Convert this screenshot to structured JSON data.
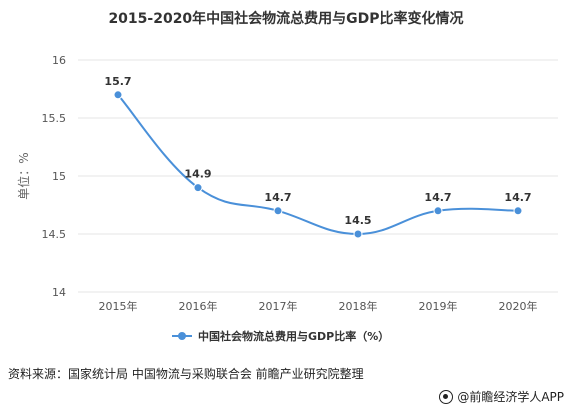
{
  "title": "2015-2020年中国社会物流总费用与GDP比率变化情况",
  "source_text": "资料来源：国家统计局 中国物流与采购联合会 前瞻产业研究院整理",
  "brand_text": "@前瞻经济学人APP",
  "chart_data": {
    "type": "line",
    "title": "2015-2020年中国社会物流总费用与GDP比率变化情况",
    "ylabel": "单位：%",
    "xlabel": "",
    "categories": [
      "2015年",
      "2016年",
      "2017年",
      "2018年",
      "2019年",
      "2020年"
    ],
    "series": [
      {
        "name": "中国社会物流总费用与GDP比率（%）",
        "values": [
          15.7,
          14.9,
          14.7,
          14.5,
          14.7,
          14.7
        ]
      }
    ],
    "data_labels": [
      "15.7",
      "14.9",
      "14.7",
      "14.5",
      "14.7",
      "14.7"
    ],
    "ylim": [
      14,
      16
    ],
    "yticks": [
      14,
      14.5,
      15,
      15.5,
      16
    ],
    "ytick_labels": [
      "14",
      "14.5",
      "15",
      "15.5",
      "16"
    ],
    "grid": true,
    "legend_position": "bottom",
    "colors": {
      "series": "#4a90d9",
      "grid": "#e6e6e6",
      "axis_text": "#555555"
    }
  }
}
